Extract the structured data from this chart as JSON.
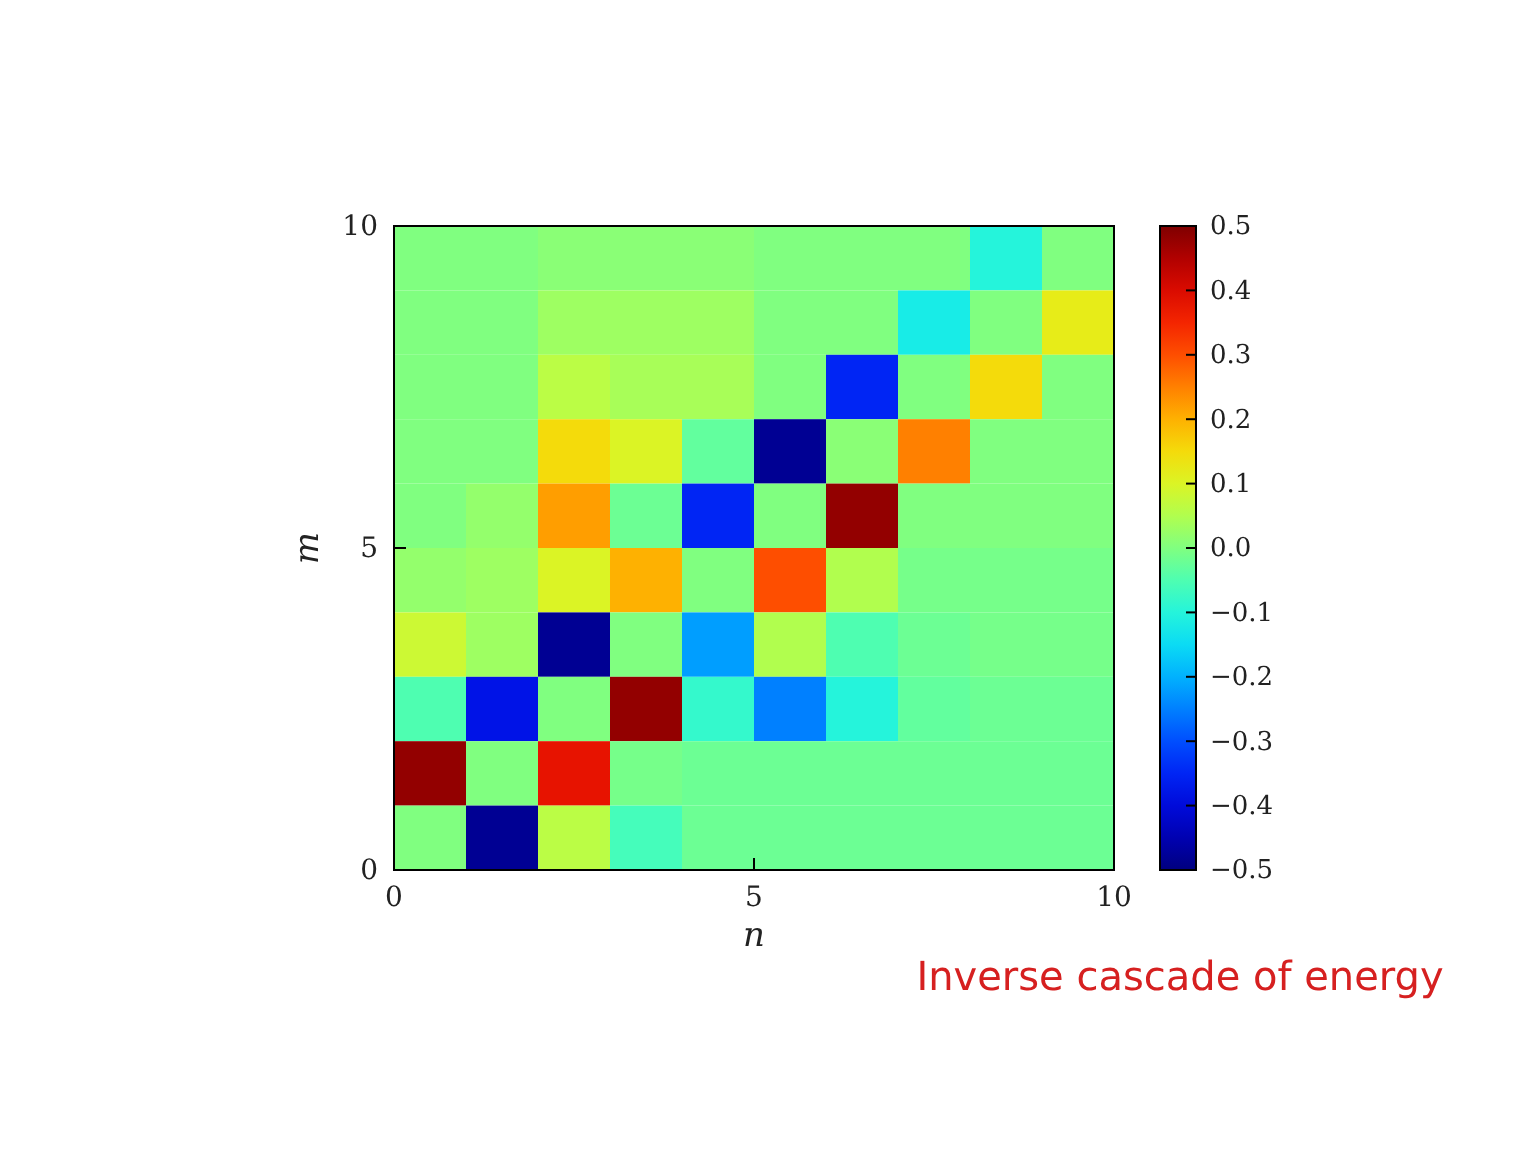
{
  "chart_data": {
    "type": "heatmap",
    "xlabel": "n",
    "ylabel": "m",
    "x": [
      0.5,
      1.5,
      2.5,
      3.5,
      4.5,
      5.5,
      6.5,
      7.5,
      8.5,
      9.5
    ],
    "xlim": [
      0,
      10
    ],
    "xticks": [
      0,
      5,
      10
    ],
    "ylim": [
      0,
      10
    ],
    "yticks": [
      0,
      5,
      10
    ],
    "cells": [
      [
        0.0,
        0.0,
        0.01,
        0.01,
        0.01,
        0.0,
        0.0,
        0.0,
        -0.1,
        0.0
      ],
      [
        0.0,
        0.0,
        0.03,
        0.03,
        0.03,
        0.0,
        0.0,
        -0.12,
        0.0,
        0.12
      ],
      [
        0.0,
        0.0,
        0.06,
        0.04,
        0.04,
        0.0,
        -0.35,
        0.0,
        0.15,
        0.0
      ],
      [
        0.0,
        0.0,
        0.15,
        0.1,
        -0.03,
        -0.48,
        0.01,
        0.25,
        0.0,
        0.0
      ],
      [
        0.0,
        0.02,
        0.22,
        -0.02,
        -0.35,
        0.0,
        0.48,
        0.0,
        0.0,
        0.0
      ],
      [
        0.02,
        0.03,
        0.1,
        0.2,
        0.0,
        0.3,
        0.05,
        -0.01,
        -0.01,
        -0.01
      ],
      [
        0.08,
        0.03,
        -0.48,
        0.0,
        -0.22,
        0.05,
        -0.05,
        -0.02,
        -0.01,
        -0.01
      ],
      [
        -0.05,
        -0.38,
        0.0,
        0.48,
        -0.08,
        -0.25,
        -0.1,
        -0.03,
        -0.02,
        -0.02
      ],
      [
        0.48,
        0.0,
        0.38,
        -0.01,
        -0.02,
        -0.02,
        -0.02,
        -0.02,
        -0.02,
        -0.02
      ],
      [
        0.0,
        -0.48,
        0.06,
        -0.06,
        -0.02,
        -0.02,
        -0.02,
        -0.02,
        -0.02,
        -0.02
      ]
    ],
    "clim": [
      -0.5,
      0.5
    ],
    "cticks": [
      {
        "value": 0.5,
        "label": "0.5"
      },
      {
        "value": 0.4,
        "label": "0.4"
      },
      {
        "value": 0.3,
        "label": "0.3"
      },
      {
        "value": 0.2,
        "label": "0.2"
      },
      {
        "value": 0.1,
        "label": "0.1"
      },
      {
        "value": 0,
        "label": "0.0"
      },
      {
        "value": -0.1,
        "label": "−0.1"
      },
      {
        "value": -0.2,
        "label": "−0.2"
      },
      {
        "value": -0.3,
        "label": "−0.3"
      },
      {
        "value": -0.4,
        "label": "−0.4"
      },
      {
        "value": -0.5,
        "label": "−0.5"
      }
    ],
    "annotations": [
      "Inverse cascade of energy"
    ]
  }
}
